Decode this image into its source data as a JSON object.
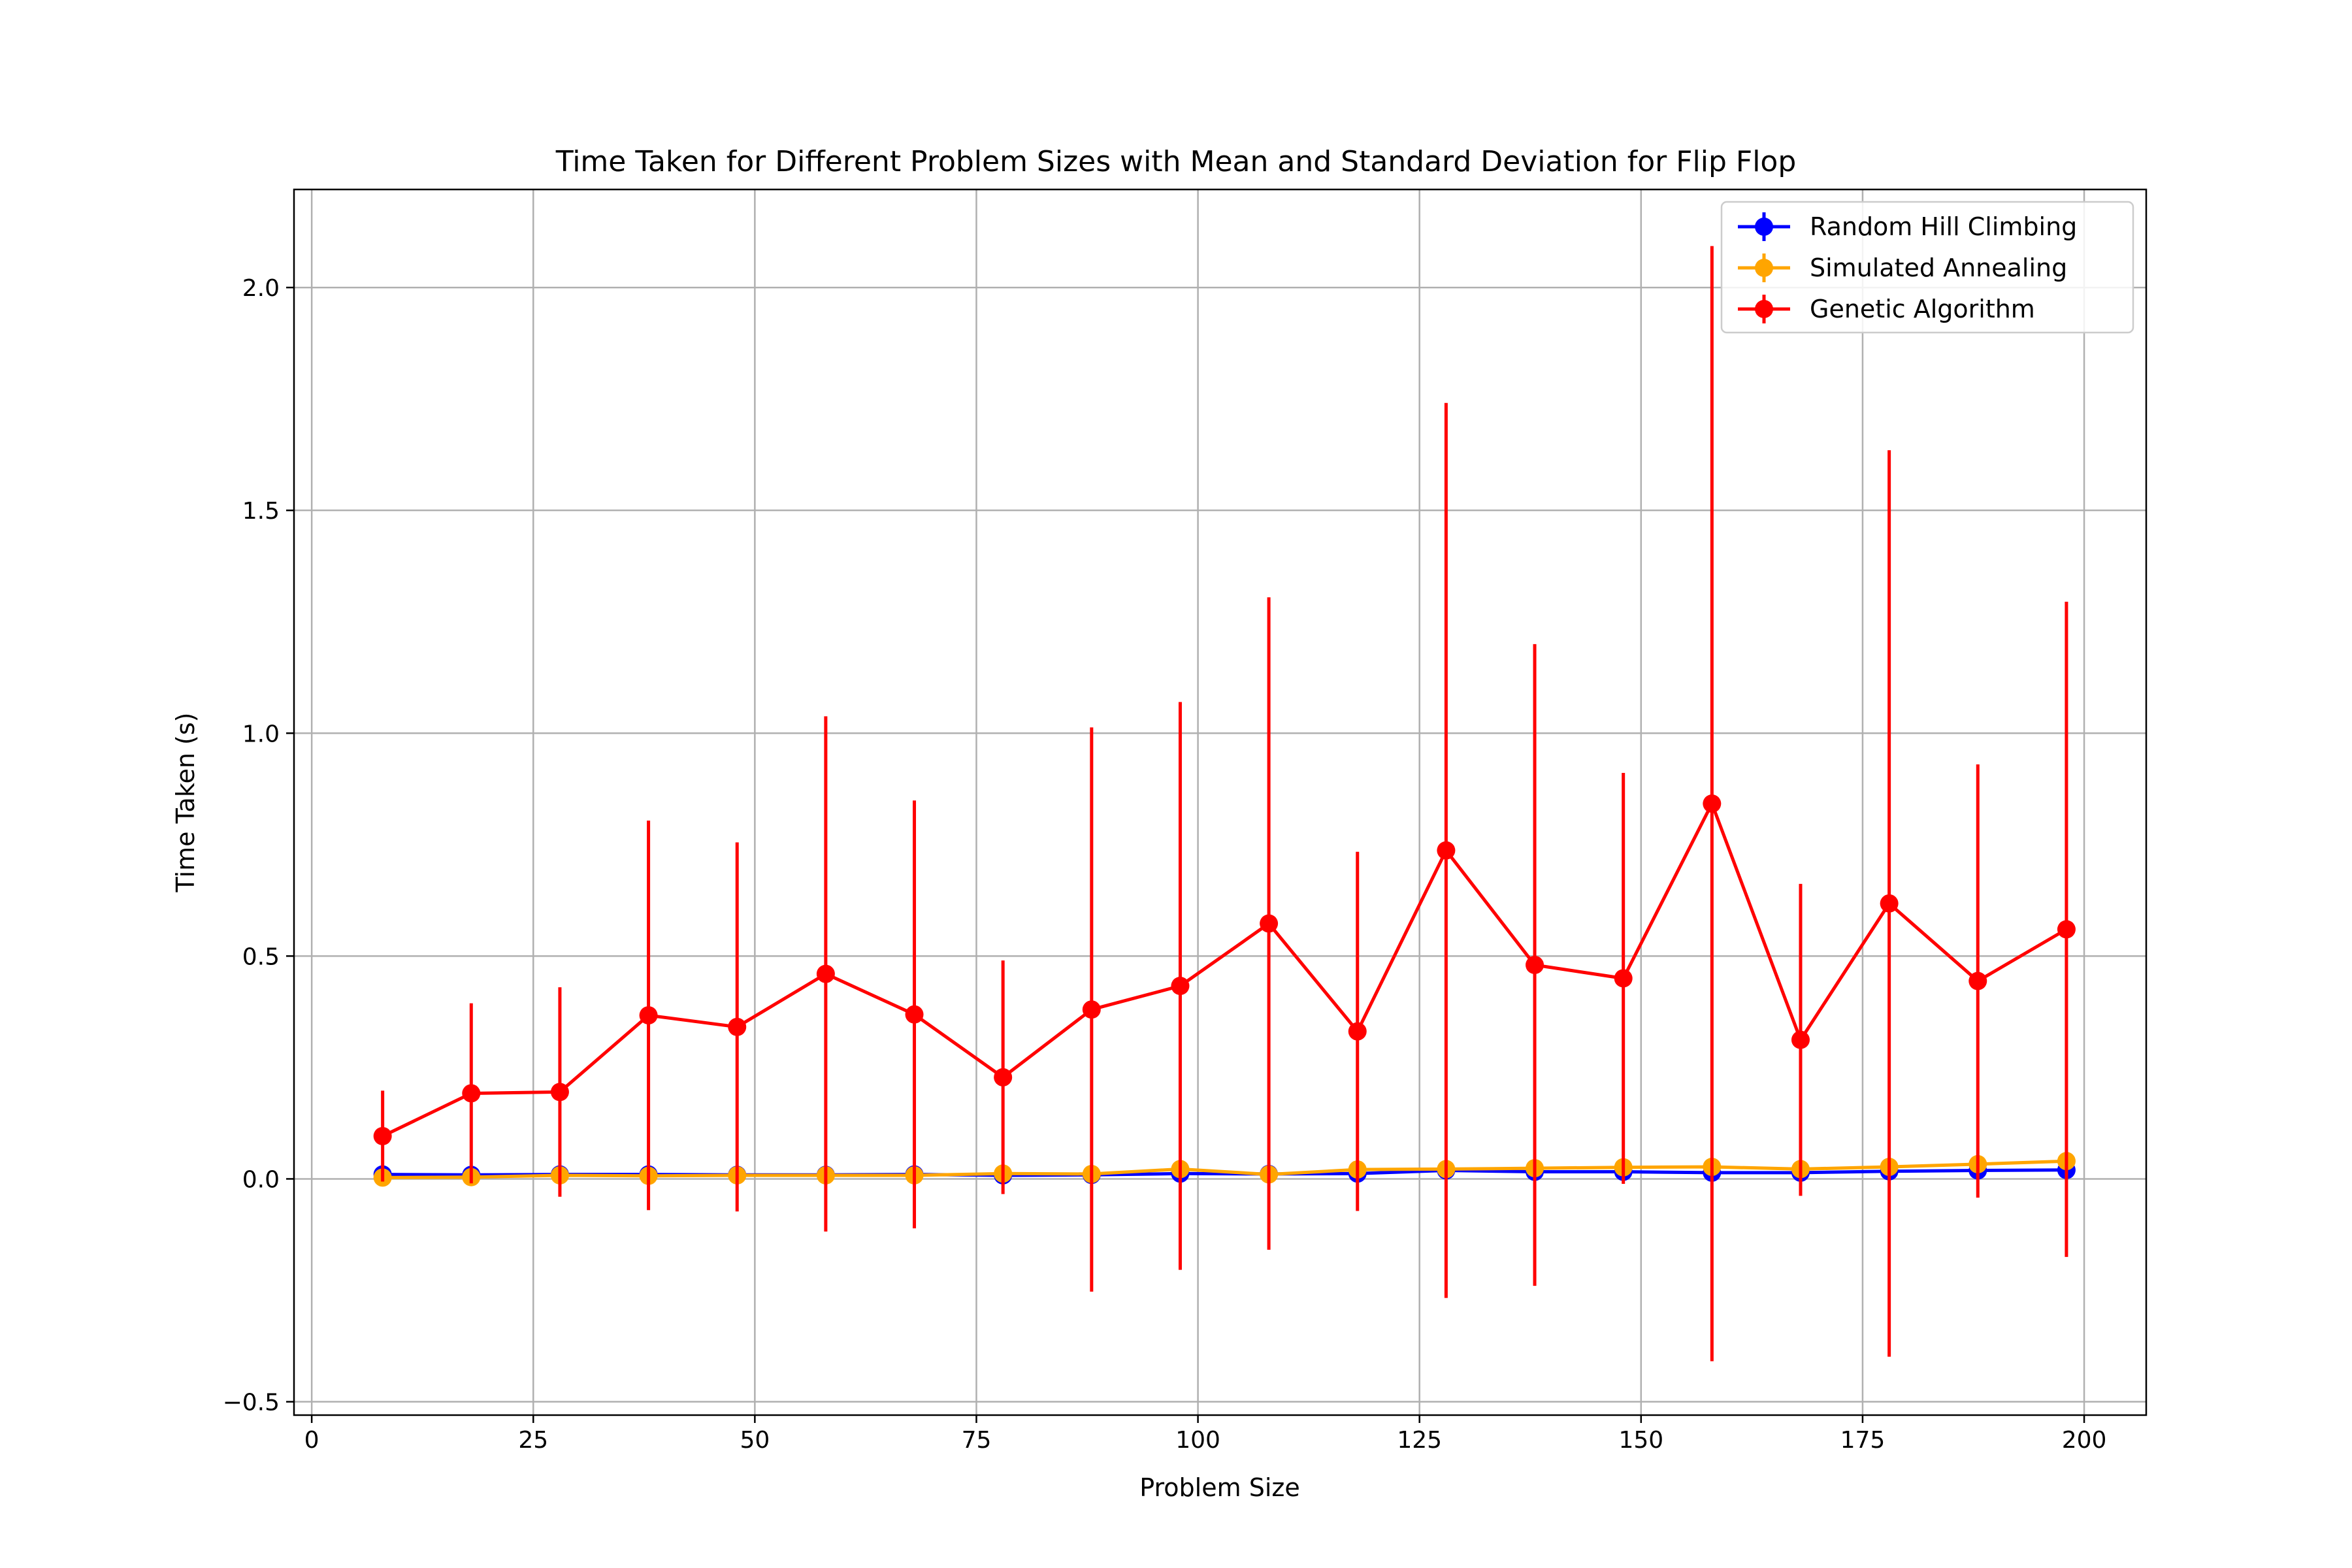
{
  "chart_data": {
    "type": "line",
    "title": "Time Taken for Different Problem Sizes with Mean and Standard Deviation for Flip Flop",
    "xlabel": "Problem Size",
    "ylabel": "Time Taken (s)",
    "xlim": [
      -2,
      207
    ],
    "ylim": [
      -0.53,
      2.22
    ],
    "xticks": [
      0,
      25,
      50,
      75,
      100,
      125,
      150,
      175,
      200
    ],
    "xtick_labels": [
      "0",
      "25",
      "50",
      "75",
      "100",
      "125",
      "150",
      "175",
      "200"
    ],
    "yticks": [
      -0.5,
      0.0,
      0.5,
      1.0,
      1.5,
      2.0
    ],
    "ytick_labels": [
      "−0.5",
      "0.0",
      "0.5",
      "1.0",
      "1.5",
      "2.0"
    ],
    "grid": true,
    "legend_position": "top-right",
    "x": [
      8,
      18,
      28,
      38,
      48,
      58,
      68,
      78,
      88,
      98,
      108,
      118,
      128,
      138,
      148,
      158,
      168,
      178,
      188,
      198
    ],
    "series": [
      {
        "name": "Random Hill Climbing",
        "color": "#0000ff",
        "values": [
          0.01,
          0.009,
          0.01,
          0.01,
          0.009,
          0.009,
          0.01,
          0.008,
          0.009,
          0.012,
          0.011,
          0.012,
          0.019,
          0.016,
          0.016,
          0.014,
          0.014,
          0.017,
          0.019,
          0.02
        ],
        "std": [
          0.002,
          0.002,
          0.002,
          0.002,
          0.002,
          0.002,
          0.002,
          0.002,
          0.002,
          0.003,
          0.003,
          0.003,
          0.004,
          0.004,
          0.004,
          0.004,
          0.004,
          0.004,
          0.005,
          0.005
        ]
      },
      {
        "name": "Simulated Annealing",
        "color": "#ffa500",
        "values": [
          0.003,
          0.004,
          0.008,
          0.007,
          0.008,
          0.008,
          0.008,
          0.012,
          0.011,
          0.022,
          0.01,
          0.021,
          0.022,
          0.024,
          0.026,
          0.027,
          0.022,
          0.027,
          0.033,
          0.04
        ],
        "std": [
          0.002,
          0.002,
          0.003,
          0.003,
          0.003,
          0.003,
          0.003,
          0.004,
          0.004,
          0.006,
          0.004,
          0.006,
          0.006,
          0.006,
          0.007,
          0.007,
          0.006,
          0.007,
          0.008,
          0.009
        ]
      },
      {
        "name": "Genetic Algorithm",
        "color": "#ff0000",
        "values": [
          0.096,
          0.192,
          0.195,
          0.367,
          0.341,
          0.46,
          0.369,
          0.228,
          0.38,
          0.433,
          0.573,
          0.331,
          0.737,
          0.48,
          0.45,
          0.842,
          0.312,
          0.618,
          0.444,
          0.56
        ],
        "std": [
          0.102,
          0.202,
          0.235,
          0.437,
          0.414,
          0.578,
          0.48,
          0.262,
          0.633,
          0.637,
          0.732,
          0.403,
          1.004,
          0.72,
          0.461,
          1.251,
          0.35,
          1.017,
          0.486,
          0.735
        ]
      }
    ]
  }
}
